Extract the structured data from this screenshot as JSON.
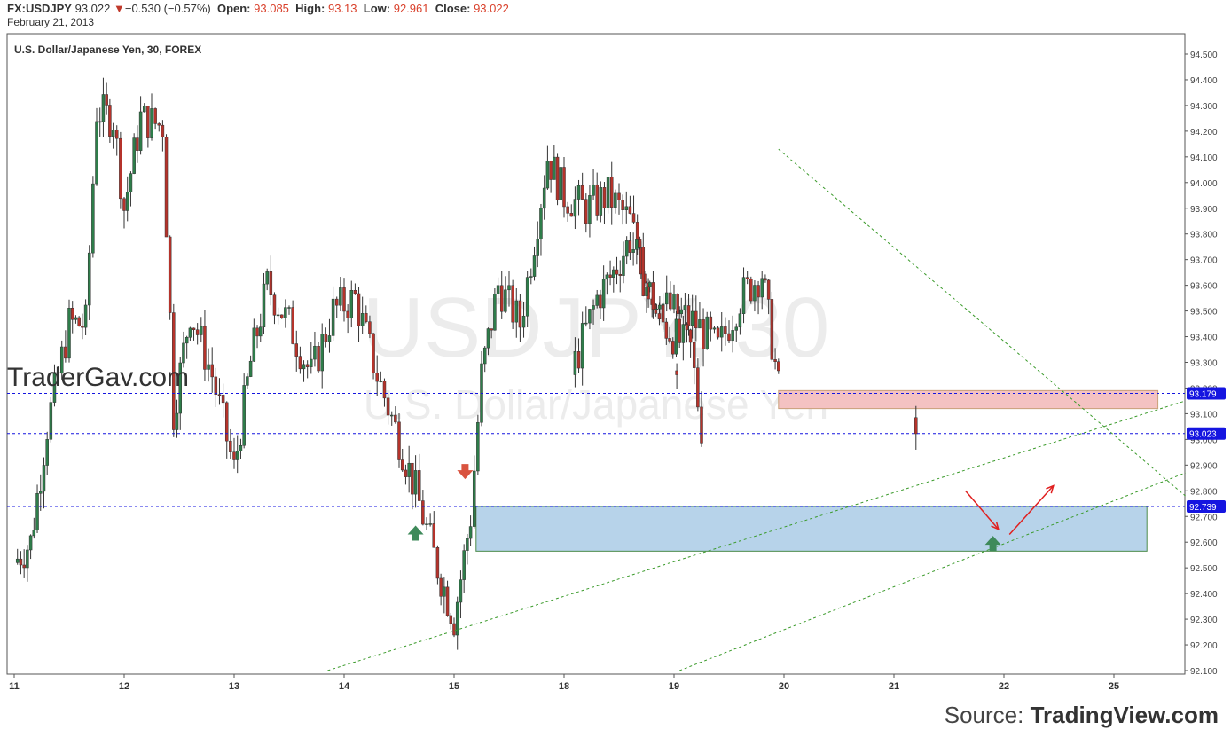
{
  "header": {
    "symbol": "FX:USDJPY",
    "last": "93.022",
    "change_arrow": "▼",
    "change": "−0.530 (−0.57%)",
    "open_label": "Open:",
    "open": "93.085",
    "high_label": "High:",
    "high": "93.13",
    "low_label": "Low:",
    "low": "92.961",
    "close_label": "Close:",
    "close": "93.022",
    "date": "February 21, 2013"
  },
  "pane_title": "U.S. Dollar/Japanese Yen, 30, FOREX",
  "watermark": {
    "line1": "USDJPY, 30",
    "line2": "U.S. Dollar/Japanese Yen"
  },
  "brand": "TraderGav.com",
  "source": {
    "prefix": "Source:",
    "name": "TradingView.com"
  },
  "colors": {
    "up": "#2e7d4a",
    "down": "#b5332b",
    "price_tag": "#1515e0",
    "demand_zone": "#b7d3ea",
    "supply_zone": "#f4c2c2",
    "trendline": "#3a9a2a"
  },
  "chart_data": {
    "type": "candlestick",
    "symbol": "USDJPY",
    "timeframe": "30",
    "x_tick_labels": [
      "11",
      "12",
      "13",
      "14",
      "15",
      "18",
      "19",
      "20",
      "21",
      "22",
      "25"
    ],
    "ylim": [
      92.1,
      94.55
    ],
    "y_ticks": [
      "92.100",
      "92.200",
      "92.300",
      "92.400",
      "92.500",
      "92.600",
      "92.700",
      "92.800",
      "92.900",
      "93.000",
      "93.100",
      "93.200",
      "93.300",
      "93.400",
      "93.500",
      "93.600",
      "93.700",
      "93.800",
      "93.900",
      "94.000",
      "94.100",
      "94.200",
      "94.300",
      "94.400",
      "94.500"
    ],
    "horizontal_lines": [
      {
        "value": 93.179,
        "label": "93.179"
      },
      {
        "value": 93.023,
        "label": "93.023"
      },
      {
        "value": 92.739,
        "label": "92.739"
      }
    ],
    "zones": [
      {
        "kind": "supply",
        "from_day": 19.95,
        "to_day": 25.4,
        "top": 93.19,
        "bottom": 93.12
      },
      {
        "kind": "demand",
        "from_day": 15.2,
        "to_day": 25.3,
        "top": 92.739,
        "bottom": 92.565
      }
    ],
    "trendlines": [
      {
        "x1": 17.95,
        "y1": 94.13,
        "x2": 25.65,
        "y2": 92.78
      },
      {
        "x1": 13.85,
        "y1": 92.1,
        "x2": 25.65,
        "y2": 93.15
      },
      {
        "x1": 19.05,
        "y1": 92.1,
        "x2": 25.65,
        "y2": 92.87
      }
    ],
    "markers": [
      {
        "type": "up",
        "day": 14.65,
        "price": 92.63
      },
      {
        "type": "down",
        "day": 15.1,
        "price": 92.88
      },
      {
        "type": "up",
        "day": 21.9,
        "price": 92.59
      }
    ],
    "arrows": [
      {
        "from_day": 21.65,
        "from_price": 92.8,
        "to_day": 21.95,
        "to_price": 92.65
      },
      {
        "from_day": 22.05,
        "from_price": 92.63,
        "to_day": 22.45,
        "to_price": 92.82
      }
    ],
    "candles_close_path": [
      {
        "day": 11.0,
        "price": 92.52
      },
      {
        "day": 11.15,
        "price": 92.6
      },
      {
        "day": 11.3,
        "price": 93.05
      },
      {
        "day": 11.5,
        "price": 93.45
      },
      {
        "day": 11.65,
        "price": 93.45
      },
      {
        "day": 11.75,
        "price": 94.28
      },
      {
        "day": 11.9,
        "price": 94.25
      },
      {
        "day": 12.0,
        "price": 93.9
      },
      {
        "day": 12.15,
        "price": 94.25
      },
      {
        "day": 12.35,
        "price": 94.22
      },
      {
        "day": 12.45,
        "price": 93.1
      },
      {
        "day": 12.6,
        "price": 93.5
      },
      {
        "day": 12.8,
        "price": 93.25
      },
      {
        "day": 13.0,
        "price": 92.88
      },
      {
        "day": 13.15,
        "price": 93.3
      },
      {
        "day": 13.3,
        "price": 93.6
      },
      {
        "day": 13.5,
        "price": 93.45
      },
      {
        "day": 13.7,
        "price": 93.25
      },
      {
        "day": 13.9,
        "price": 93.5
      },
      {
        "day": 14.1,
        "price": 93.55
      },
      {
        "day": 14.3,
        "price": 93.25
      },
      {
        "day": 14.5,
        "price": 93.0
      },
      {
        "day": 14.65,
        "price": 92.8
      },
      {
        "day": 14.85,
        "price": 92.5
      },
      {
        "day": 15.0,
        "price": 92.3
      },
      {
        "day": 15.15,
        "price": 92.7
      },
      {
        "day": 15.25,
        "price": 93.25
      },
      {
        "day": 15.4,
        "price": 93.6
      },
      {
        "day": 15.6,
        "price": 93.45
      },
      {
        "day": 15.7,
        "price": 93.7
      },
      {
        "day": 15.85,
        "price": 94.1
      },
      {
        "day": 16.0,
        "price": 93.95
      },
      {
        "day": 16.2,
        "price": 93.9
      },
      {
        "day": 16.4,
        "price": 93.95
      },
      {
        "day": 16.6,
        "price": 93.85
      },
      {
        "day": 16.8,
        "price": 93.55
      },
      {
        "day": 17.0,
        "price": 93.5
      },
      {
        "day": 17.2,
        "price": 93.45
      },
      {
        "day": 17.4,
        "price": 93.35
      },
      {
        "day": 17.6,
        "price": 93.55
      },
      {
        "day": 17.8,
        "price": 93.65
      },
      {
        "day": 17.95,
        "price": 93.2
      },
      {
        "day": 18.1,
        "price": 93.3
      },
      {
        "day": 18.3,
        "price": 93.55
      },
      {
        "day": 18.45,
        "price": 93.65
      },
      {
        "day": 18.6,
        "price": 93.78
      },
      {
        "day": 18.75,
        "price": 93.6
      },
      {
        "day": 18.9,
        "price": 93.45
      },
      {
        "day": 19.05,
        "price": 93.38
      },
      {
        "day": 19.15,
        "price": 93.35
      },
      {
        "day": 19.25,
        "price": 93.05
      }
    ]
  }
}
